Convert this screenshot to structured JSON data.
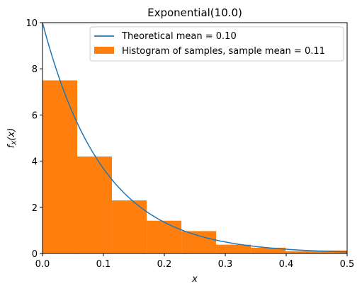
{
  "chart_data": {
    "type": "bar",
    "title": "Exponential(10.0)",
    "xlabel": "x",
    "ylabel": "f_X(x)",
    "xlim": [
      0.0,
      0.5
    ],
    "ylim": [
      0,
      10
    ],
    "x_ticks": [
      "0.0",
      "0.1",
      "0.2",
      "0.3",
      "0.4",
      "0.5"
    ],
    "x_tick_values": [
      0.0,
      0.1,
      0.2,
      0.3,
      0.4,
      0.5
    ],
    "y_ticks": [
      "0",
      "2",
      "4",
      "6",
      "8",
      "10"
    ],
    "y_tick_values": [
      0,
      2,
      4,
      6,
      8,
      10
    ],
    "grid": false,
    "legend_position": "top-right",
    "series": [
      {
        "name": "Theoretical mean = 0.10",
        "kind": "line",
        "color": "#1f77b4",
        "rate": 10.0
      },
      {
        "name": "Histogram of samples, sample mean = 0.11",
        "kind": "histogram",
        "color": "#ff7f0e",
        "bins": [
          {
            "x0": 0.0,
            "x1": 0.057,
            "value": 7.5
          },
          {
            "x0": 0.057,
            "x1": 0.114,
            "value": 4.2
          },
          {
            "x0": 0.114,
            "x1": 0.171,
            "value": 2.3
          },
          {
            "x0": 0.171,
            "x1": 0.228,
            "value": 1.42
          },
          {
            "x0": 0.228,
            "x1": 0.285,
            "value": 0.97
          },
          {
            "x0": 0.285,
            "x1": 0.342,
            "value": 0.38
          },
          {
            "x0": 0.342,
            "x1": 0.399,
            "value": 0.25
          },
          {
            "x0": 0.399,
            "x1": 0.456,
            "value": 0.1
          },
          {
            "x0": 0.456,
            "x1": 0.513,
            "value": 0.13
          }
        ]
      }
    ]
  }
}
